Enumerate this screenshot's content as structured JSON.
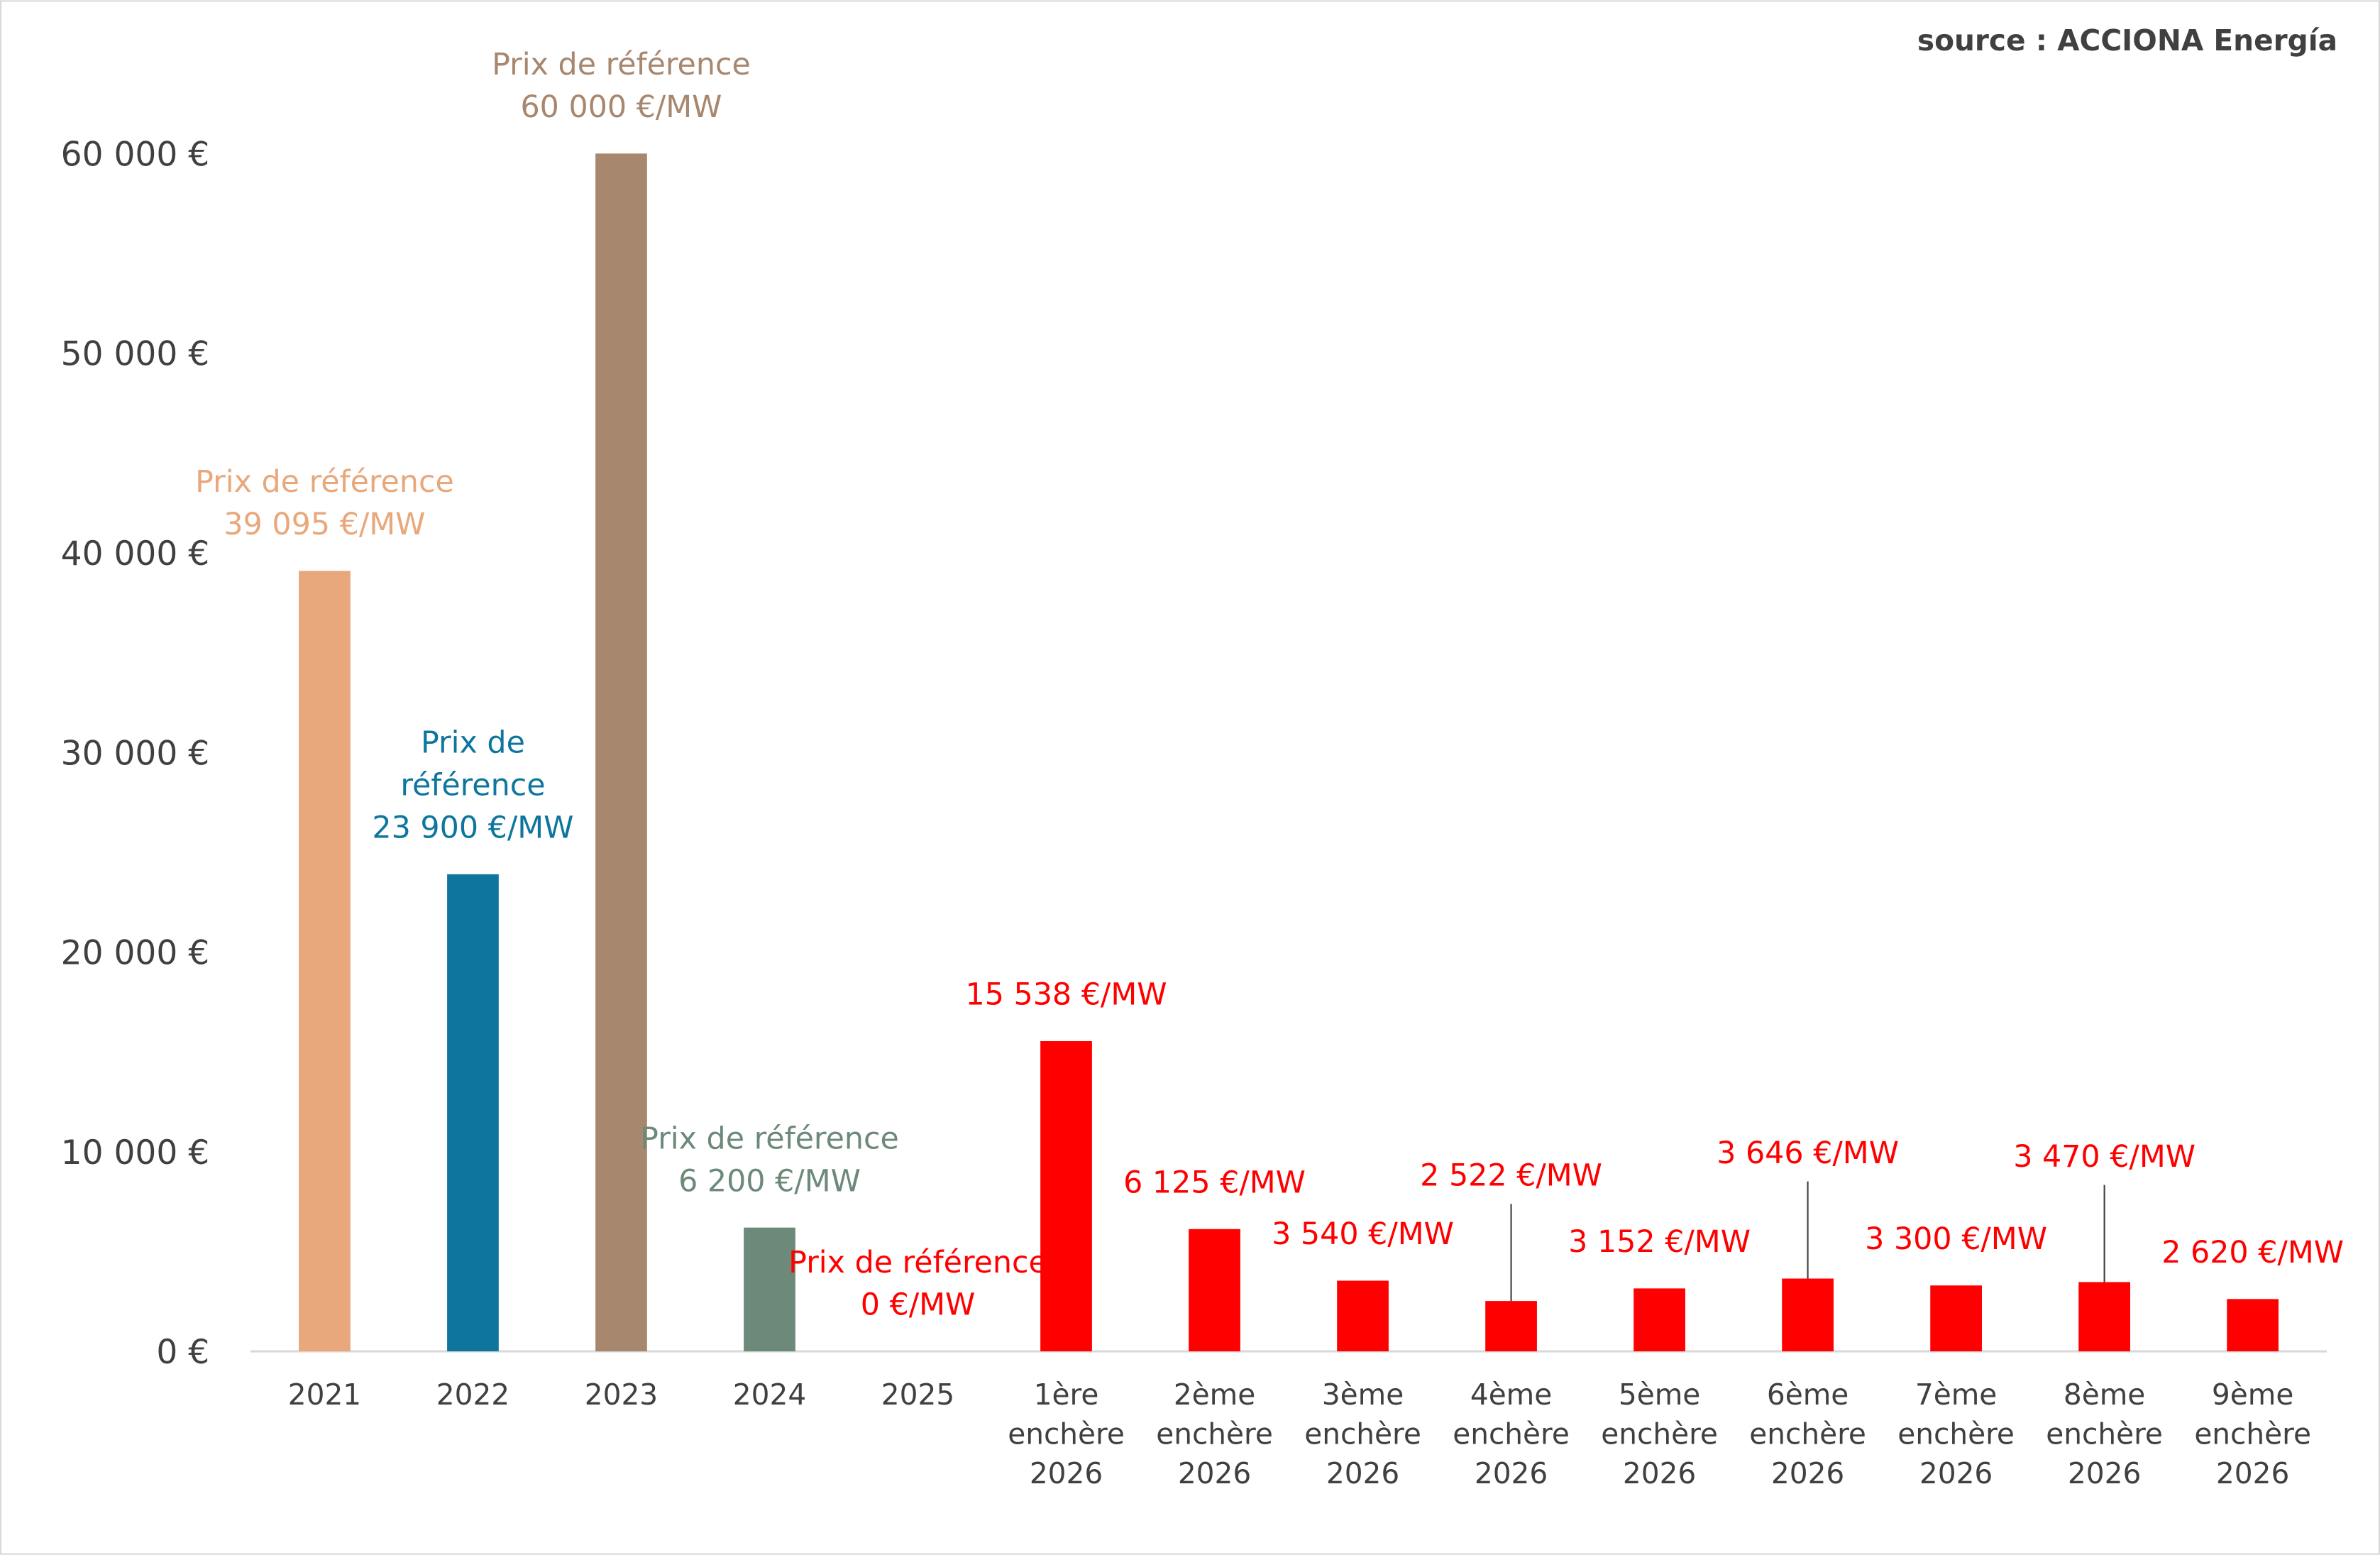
{
  "chart_data": {
    "type": "bar",
    "annotation": "source : ACCIONA Energía",
    "categories": [
      "2021",
      "2022",
      "2023",
      "2024",
      "2025",
      "1ère enchère 2026",
      "2ème enchère 2026",
      "3ème enchère 2026",
      "4ème enchère 2026",
      "5ème enchère 2026",
      "6ème enchère 2026",
      "7ème enchère 2026",
      "8ème enchère 2026",
      "9ème enchère 2026"
    ],
    "values": [
      39095,
      23900,
      60000,
      6200,
      0,
      15538,
      6125,
      3540,
      2522,
      3152,
      3646,
      3300,
      3470,
      2620
    ],
    "value_labels": [
      "Prix de référence\n39 095 €/MW",
      "Prix de\nréférence\n23 900 €/MW",
      "Prix de référence\n60 000 €/MW",
      "Prix de référence\n6 200 €/MW",
      "Prix de référence\n0 €/MW",
      "15 538 €/MW",
      "6 125 €/MW",
      "3 540 €/MW",
      "2 522 €/MW",
      "3 152 €/MW",
      "3 646 €/MW",
      "3 300 €/MW",
      "3 470 €/MW",
      "2 620 €/MW"
    ],
    "colors": [
      "#E9A87B",
      "#0E769E",
      "#A8876F",
      "#6C8979",
      "#FF0000",
      "#FF0000",
      "#FF0000",
      "#FF0000",
      "#FF0000",
      "#FF0000",
      "#FF0000",
      "#FF0000",
      "#FF0000",
      "#FF0000"
    ],
    "ylim": [
      0,
      60000
    ],
    "yticks": [
      {
        "value": 0,
        "label": "0 €"
      },
      {
        "value": 10000,
        "label": "10 000 €"
      },
      {
        "value": 20000,
        "label": "20 000 €"
      },
      {
        "value": 30000,
        "label": "30 000 €"
      },
      {
        "value": 40000,
        "label": "40 000 €"
      },
      {
        "value": 50000,
        "label": "50 000 €"
      },
      {
        "value": 60000,
        "label": "60 000 €"
      }
    ],
    "grid": false
  }
}
